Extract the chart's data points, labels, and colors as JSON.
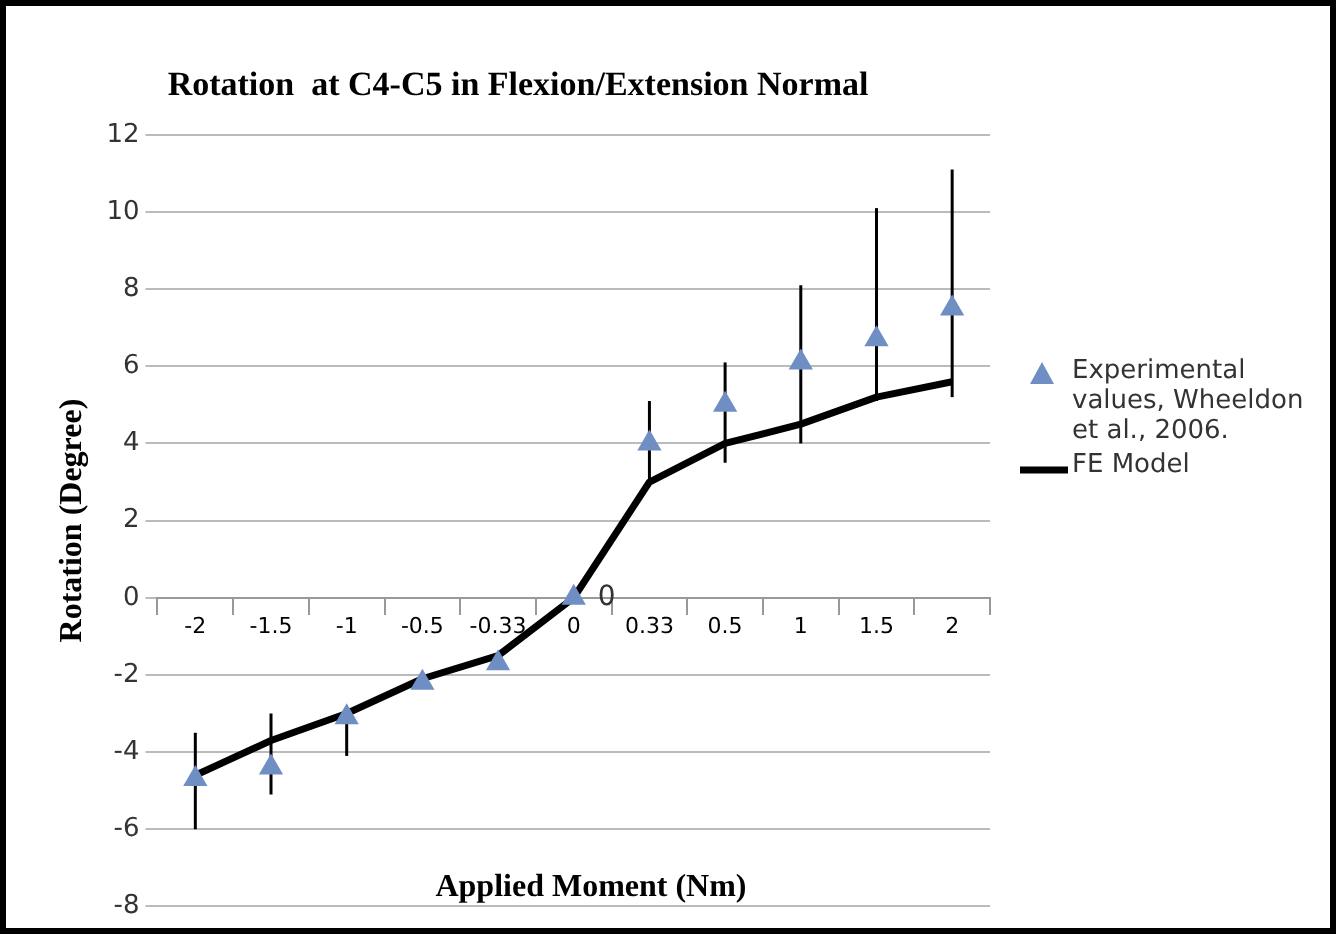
{
  "chart_data": {
    "type": "line",
    "title": "Rotation  at C4-C5 in Flexion/Extension Normal",
    "xlabel": "Applied Moment (Nm)",
    "ylabel": "Rotation (Degree)",
    "categories": [
      "-2",
      "-1.5",
      "-1",
      "-0.5",
      "-0.33",
      "0",
      "0.33",
      "0.5",
      "1",
      "1.5",
      "2"
    ],
    "series": [
      {
        "name": "Experimental values, Wheeldon et al., 2006.",
        "type": "scatter",
        "marker": "triangle",
        "color": "#6f8fc4",
        "values": [
          -4.7,
          -4.4,
          -3.1,
          -2.2,
          -1.7,
          0,
          4.0,
          5.0,
          6.1,
          6.7,
          7.5
        ],
        "errors": [
          [
            -6,
            -3.5
          ],
          [
            -5.1,
            -3
          ],
          [
            -4.1,
            -3
          ],
          null,
          null,
          null,
          [
            3,
            5.1
          ],
          [
            3.5,
            6.1
          ],
          [
            4,
            8.1
          ],
          [
            5.1,
            10.1
          ],
          [
            5.2,
            11.1
          ]
        ]
      },
      {
        "name": "FE Model",
        "type": "line",
        "marker": "none",
        "color": "#000000",
        "values": [
          -4.6,
          -3.7,
          -3.0,
          -2.1,
          -1.5,
          0,
          3.0,
          4.0,
          4.5,
          5.2,
          5.6
        ]
      }
    ],
    "ylim": [
      -8,
      12
    ],
    "yticks": [
      -8,
      -6,
      -4,
      -2,
      0,
      2,
      4,
      6,
      8,
      10,
      12
    ],
    "grid": "y",
    "legend": "right",
    "annotations": [
      {
        "text": "0",
        "x": "0",
        "y": 0
      }
    ]
  }
}
